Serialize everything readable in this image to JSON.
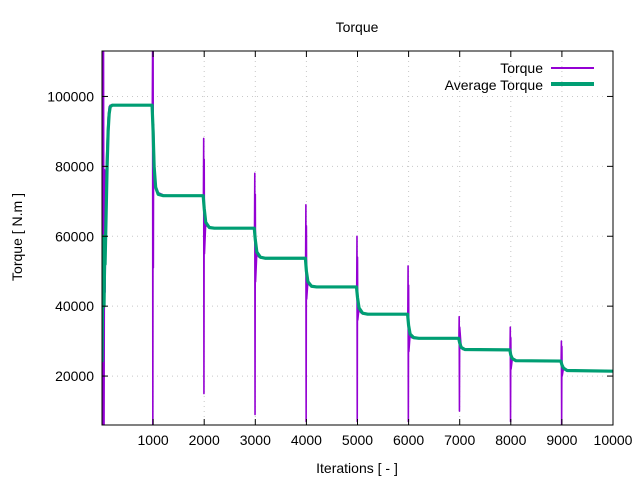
{
  "chart_data": {
    "type": "line",
    "title": "Torque",
    "xlabel": "Iterations [ - ]",
    "ylabel": "Torque [ N.m ]",
    "xlim": [
      0,
      10000
    ],
    "ylim": [
      6000,
      113000
    ],
    "grid": true,
    "legend_position": "top-right",
    "x_ticks": [
      1000,
      2000,
      3000,
      4000,
      5000,
      6000,
      7000,
      8000,
      9000,
      10000
    ],
    "x_tick_labels": [
      "1000",
      "2000",
      "3000",
      "4000",
      "5000",
      "6000",
      "7000",
      "8000",
      "9000",
      "10000"
    ],
    "y_ticks": [
      20000,
      40000,
      60000,
      80000,
      100000
    ],
    "y_tick_labels": [
      "20000",
      "40000",
      "60000",
      "80000",
      "100000"
    ],
    "series": [
      {
        "name": "Torque",
        "color": "#9400d3",
        "points": [
          [
            0,
            24000
          ],
          [
            10,
            113000
          ],
          [
            20,
            6000
          ],
          [
            30,
            113000
          ],
          [
            40,
            6000
          ],
          [
            50,
            79000
          ],
          [
            60,
            44000
          ],
          [
            80,
            78000
          ],
          [
            100,
            87000
          ],
          [
            120,
            94000
          ],
          [
            140,
            97000
          ],
          [
            160,
            97500
          ],
          [
            300,
            97500
          ],
          [
            500,
            97500
          ],
          [
            700,
            97500
          ],
          [
            985,
            97500
          ],
          [
            990,
            113000
          ],
          [
            995,
            6000
          ],
          [
            1000,
            113000
          ],
          [
            1005,
            51000
          ],
          [
            1010,
            92000
          ],
          [
            1030,
            78000
          ],
          [
            1060,
            74000
          ],
          [
            1100,
            72500
          ],
          [
            1200,
            71800
          ],
          [
            1400,
            71600
          ],
          [
            1985,
            71600
          ],
          [
            1990,
            88000
          ],
          [
            1995,
            15000
          ],
          [
            2000,
            82000
          ],
          [
            2005,
            55000
          ],
          [
            2030,
            64000
          ],
          [
            2060,
            62800
          ],
          [
            2100,
            62500
          ],
          [
            2300,
            62300
          ],
          [
            2985,
            62300
          ],
          [
            2990,
            78000
          ],
          [
            2995,
            9000
          ],
          [
            3000,
            72000
          ],
          [
            3005,
            47000
          ],
          [
            3030,
            55500
          ],
          [
            3060,
            54200
          ],
          [
            3100,
            53800
          ],
          [
            3300,
            53700
          ],
          [
            3985,
            53700
          ],
          [
            3990,
            69000
          ],
          [
            3995,
            7000
          ],
          [
            4000,
            63000
          ],
          [
            4005,
            42000
          ],
          [
            4030,
            47200
          ],
          [
            4060,
            46000
          ],
          [
            4100,
            45600
          ],
          [
            4300,
            45500
          ],
          [
            4985,
            45500
          ],
          [
            4990,
            60000
          ],
          [
            4995,
            7000
          ],
          [
            5000,
            54000
          ],
          [
            5005,
            36000
          ],
          [
            5030,
            39500
          ],
          [
            5060,
            38200
          ],
          [
            5100,
            37800
          ],
          [
            5300,
            37700
          ],
          [
            5985,
            37700
          ],
          [
            5990,
            51500
          ],
          [
            5995,
            7000
          ],
          [
            6000,
            46000
          ],
          [
            6005,
            27000
          ],
          [
            6030,
            32000
          ],
          [
            6060,
            31000
          ],
          [
            6100,
            30800
          ],
          [
            6985,
            30800
          ],
          [
            6990,
            37000
          ],
          [
            6995,
            10000
          ],
          [
            7000,
            34000
          ],
          [
            7030,
            28000
          ],
          [
            7060,
            27600
          ],
          [
            7100,
            27500
          ],
          [
            7985,
            27500
          ],
          [
            7990,
            34000
          ],
          [
            7995,
            7000
          ],
          [
            8000,
            31000
          ],
          [
            8005,
            22000
          ],
          [
            8030,
            25000
          ],
          [
            8060,
            24500
          ],
          [
            8100,
            24300
          ],
          [
            8985,
            24300
          ],
          [
            8990,
            30000
          ],
          [
            8995,
            6000
          ],
          [
            9000,
            28500
          ],
          [
            9005,
            20000
          ],
          [
            9030,
            22200
          ],
          [
            9060,
            21700
          ],
          [
            9100,
            21500
          ],
          [
            10000,
            21400
          ]
        ]
      },
      {
        "name": "Average Torque",
        "color": "#009e73",
        "points": [
          [
            0,
            24000
          ],
          [
            10,
            40000
          ],
          [
            20,
            52000
          ],
          [
            30,
            60000
          ],
          [
            40,
            40000
          ],
          [
            55,
            58000
          ],
          [
            60,
            52000
          ],
          [
            80,
            66000
          ],
          [
            100,
            80000
          ],
          [
            120,
            90000
          ],
          [
            140,
            95000
          ],
          [
            160,
            97000
          ],
          [
            200,
            97500
          ],
          [
            980,
            97500
          ],
          [
            1000,
            90000
          ],
          [
            1020,
            80000
          ],
          [
            1050,
            74000
          ],
          [
            1100,
            72000
          ],
          [
            1200,
            71600
          ],
          [
            1980,
            71600
          ],
          [
            2000,
            68000
          ],
          [
            2030,
            64000
          ],
          [
            2100,
            62500
          ],
          [
            2200,
            62300
          ],
          [
            2980,
            62300
          ],
          [
            3000,
            59000
          ],
          [
            3030,
            55500
          ],
          [
            3100,
            54000
          ],
          [
            3200,
            53700
          ],
          [
            3980,
            53700
          ],
          [
            4000,
            50000
          ],
          [
            4030,
            47000
          ],
          [
            4100,
            45700
          ],
          [
            4200,
            45500
          ],
          [
            4980,
            45500
          ],
          [
            5000,
            42500
          ],
          [
            5030,
            39500
          ],
          [
            5100,
            38000
          ],
          [
            5200,
            37700
          ],
          [
            5980,
            37700
          ],
          [
            6000,
            34500
          ],
          [
            6030,
            32000
          ],
          [
            6100,
            31000
          ],
          [
            6200,
            30800
          ],
          [
            6980,
            30800
          ],
          [
            7000,
            29500
          ],
          [
            7030,
            28200
          ],
          [
            7100,
            27600
          ],
          [
            7980,
            27500
          ],
          [
            8000,
            26000
          ],
          [
            8030,
            25000
          ],
          [
            8100,
            24400
          ],
          [
            8980,
            24300
          ],
          [
            9000,
            23200
          ],
          [
            9030,
            22300
          ],
          [
            9100,
            21600
          ],
          [
            10000,
            21400
          ]
        ]
      }
    ]
  }
}
